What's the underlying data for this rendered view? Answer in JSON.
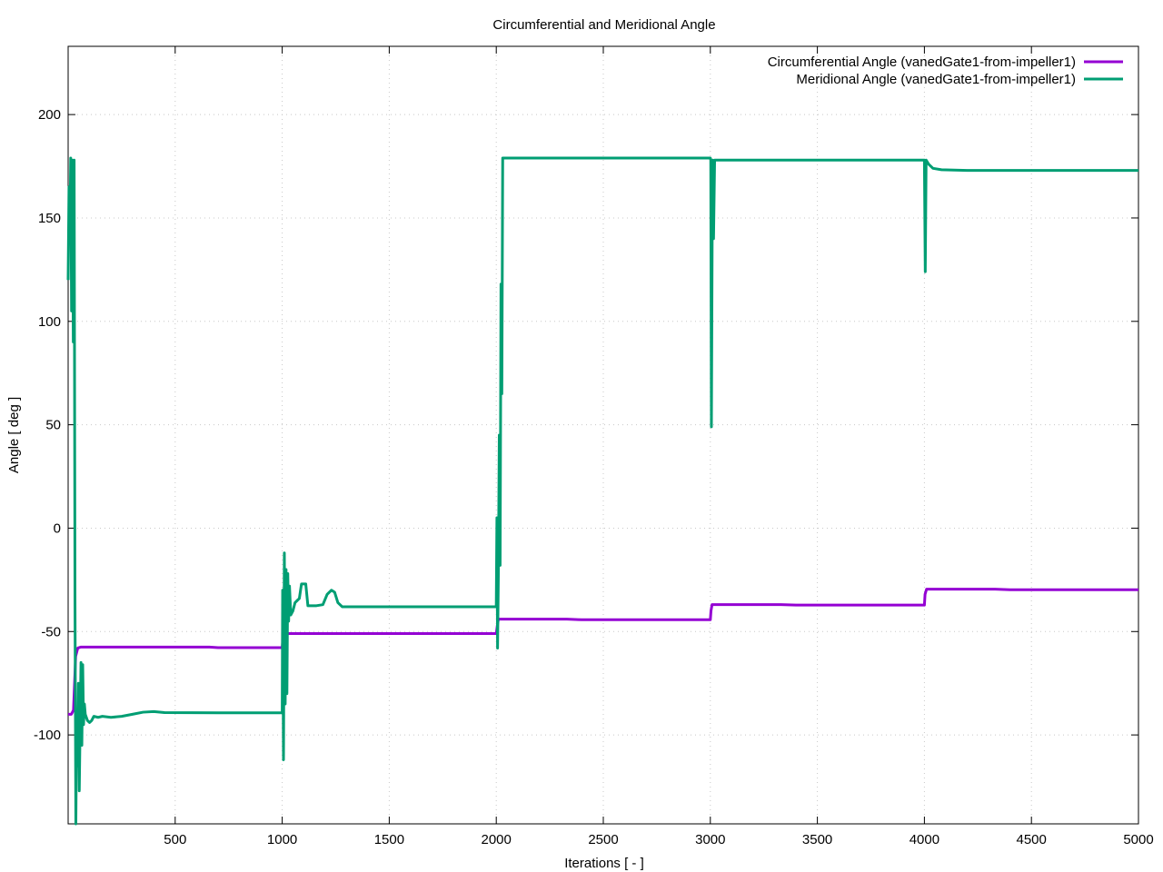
{
  "chart_data": {
    "type": "line",
    "title": "Circumferential and Meridional Angle",
    "xlabel": "Iterations [ - ]",
    "ylabel": "Angle [ deg ]",
    "xlim": [
      0,
      5000
    ],
    "ylim": [
      -143,
      233
    ],
    "xticks": [
      500,
      1000,
      1500,
      2000,
      2500,
      3000,
      3500,
      4000,
      4500,
      5000
    ],
    "yticks": [
      -100,
      -50,
      0,
      50,
      100,
      150,
      200
    ],
    "grid": true,
    "legend_position": "top-right",
    "series": [
      {
        "name": "Circumferential Angle (vanedGate1-from-impeller1)",
        "color": "#9400d3",
        "points": [
          [
            0,
            -90
          ],
          [
            15,
            -90
          ],
          [
            25,
            -88
          ],
          [
            30,
            -75
          ],
          [
            35,
            -62
          ],
          [
            45,
            -58
          ],
          [
            60,
            -57.5
          ],
          [
            300,
            -57.5
          ],
          [
            660,
            -57.5
          ],
          [
            700,
            -57.8
          ],
          [
            1000,
            -57.8
          ],
          [
            1002,
            -55
          ],
          [
            1008,
            -52
          ],
          [
            1020,
            -51
          ],
          [
            1300,
            -51
          ],
          [
            2000,
            -51
          ],
          [
            2005,
            -47
          ],
          [
            2010,
            -44
          ],
          [
            2030,
            -44
          ],
          [
            2330,
            -44
          ],
          [
            2400,
            -44.3
          ],
          [
            3000,
            -44.3
          ],
          [
            3003,
            -40
          ],
          [
            3008,
            -37
          ],
          [
            3030,
            -37
          ],
          [
            3330,
            -37
          ],
          [
            3400,
            -37.2
          ],
          [
            4000,
            -37.2
          ],
          [
            4003,
            -32
          ],
          [
            4010,
            -29.5
          ],
          [
            4030,
            -29.5
          ],
          [
            4330,
            -29.5
          ],
          [
            4400,
            -29.8
          ],
          [
            5000,
            -29.8
          ]
        ]
      },
      {
        "name": "Meridional Angle (vanedGate1-from-impeller1)",
        "color": "#009e73",
        "points": [
          [
            0,
            120
          ],
          [
            4,
            165
          ],
          [
            8,
            140
          ],
          [
            12,
            179
          ],
          [
            16,
            105
          ],
          [
            20,
            178
          ],
          [
            24,
            90
          ],
          [
            28,
            178
          ],
          [
            32,
            -35
          ],
          [
            36,
            -143
          ],
          [
            40,
            -90
          ],
          [
            44,
            -115
          ],
          [
            48,
            -75
          ],
          [
            52,
            -127
          ],
          [
            56,
            -95
          ],
          [
            60,
            -65
          ],
          [
            64,
            -105
          ],
          [
            68,
            -66
          ],
          [
            72,
            -95
          ],
          [
            76,
            -85
          ],
          [
            80,
            -90
          ],
          [
            90,
            -93
          ],
          [
            100,
            -94
          ],
          [
            110,
            -93
          ],
          [
            120,
            -91
          ],
          [
            140,
            -91.5
          ],
          [
            160,
            -91
          ],
          [
            200,
            -91.5
          ],
          [
            250,
            -91
          ],
          [
            300,
            -90
          ],
          [
            350,
            -89
          ],
          [
            400,
            -88.7
          ],
          [
            450,
            -89.2
          ],
          [
            700,
            -89.3
          ],
          [
            1000,
            -89.3
          ],
          [
            1002,
            -30
          ],
          [
            1006,
            -112
          ],
          [
            1010,
            -12
          ],
          [
            1014,
            -85
          ],
          [
            1018,
            -20
          ],
          [
            1022,
            -80
          ],
          [
            1026,
            -22
          ],
          [
            1030,
            -45
          ],
          [
            1034,
            -28
          ],
          [
            1040,
            -42
          ],
          [
            1050,
            -40
          ],
          [
            1060,
            -36
          ],
          [
            1070,
            -35
          ],
          [
            1080,
            -34
          ],
          [
            1090,
            -27
          ],
          [
            1110,
            -27
          ],
          [
            1120,
            -37.5
          ],
          [
            1160,
            -37.5
          ],
          [
            1190,
            -37
          ],
          [
            1210,
            -32
          ],
          [
            1230,
            -30
          ],
          [
            1245,
            -31
          ],
          [
            1260,
            -36
          ],
          [
            1280,
            -38
          ],
          [
            1300,
            -38
          ],
          [
            2000,
            -38
          ],
          [
            2003,
            5
          ],
          [
            2006,
            -58
          ],
          [
            2010,
            -20
          ],
          [
            2014,
            45
          ],
          [
            2018,
            -18
          ],
          [
            2022,
            118
          ],
          [
            2026,
            65
          ],
          [
            2030,
            179
          ],
          [
            2500,
            179
          ],
          [
            3000,
            179
          ],
          [
            3002,
            178
          ],
          [
            3005,
            49
          ],
          [
            3010,
            178
          ],
          [
            3015,
            140
          ],
          [
            3020,
            178
          ],
          [
            3400,
            178
          ],
          [
            4000,
            178
          ],
          [
            4004,
            124
          ],
          [
            4008,
            178
          ],
          [
            4020,
            176
          ],
          [
            4040,
            174
          ],
          [
            4080,
            173.3
          ],
          [
            4200,
            173
          ],
          [
            5000,
            173
          ]
        ]
      }
    ]
  }
}
